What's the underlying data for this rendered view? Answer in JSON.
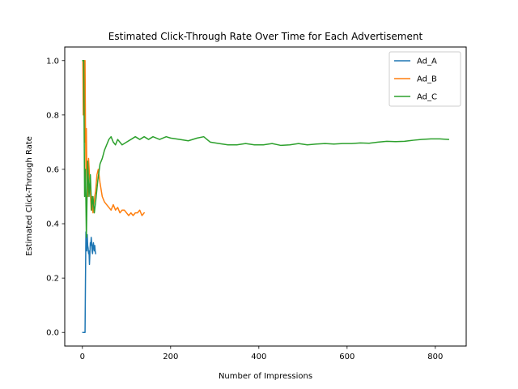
{
  "chart_data": {
    "type": "line",
    "title": "Estimated Click-Through Rate Over Time for Each Advertisement",
    "xlabel": "Number of Impressions",
    "ylabel": "Estimated Click-Through Rate",
    "xlim": [
      -40,
      870
    ],
    "ylim": [
      -0.05,
      1.05
    ],
    "xticks": [
      0,
      200,
      400,
      600,
      800
    ],
    "yticks": [
      0.0,
      0.2,
      0.4,
      0.6,
      0.8,
      1.0
    ],
    "xtick_labels": [
      "0",
      "200",
      "400",
      "600",
      "800"
    ],
    "ytick_labels": [
      "0.0",
      "0.2",
      "0.4",
      "0.6",
      "0.8",
      "1.0"
    ],
    "grid": false,
    "legend_position": "top-right",
    "series": [
      {
        "name": "Ad_A",
        "color": "#1f77b4",
        "x": [
          1,
          2,
          3,
          4,
          5,
          6,
          7,
          8,
          9,
          10,
          11,
          12,
          13,
          14,
          15,
          16,
          17,
          18,
          19,
          20,
          21,
          22,
          23,
          24,
          25,
          26,
          27,
          28,
          29,
          30
        ],
        "y": [
          0.0,
          0.0,
          0.0,
          0.0,
          0.0,
          0.0,
          0.2,
          0.37,
          0.33,
          0.3,
          0.36,
          0.32,
          0.31,
          0.29,
          0.3,
          0.25,
          0.29,
          0.33,
          0.32,
          0.35,
          0.33,
          0.3,
          0.29,
          0.32,
          0.33,
          0.31,
          0.3,
          0.32,
          0.3,
          0.29
        ]
      },
      {
        "name": "Ad_B",
        "color": "#ff7f0e",
        "x": [
          1,
          2,
          3,
          4,
          5,
          6,
          7,
          8,
          9,
          10,
          12,
          14,
          16,
          18,
          20,
          22,
          24,
          26,
          28,
          30,
          33,
          36,
          40,
          45,
          50,
          55,
          60,
          65,
          70,
          75,
          80,
          85,
          90,
          95,
          100,
          105,
          110,
          115,
          120,
          125,
          130,
          135,
          140
        ],
        "y": [
          1.0,
          0.8,
          1.0,
          1.0,
          0.7,
          1.0,
          0.75,
          0.6,
          0.75,
          0.6,
          0.5,
          0.64,
          0.58,
          0.52,
          0.45,
          0.5,
          0.44,
          0.47,
          0.5,
          0.52,
          0.58,
          0.6,
          0.55,
          0.5,
          0.48,
          0.47,
          0.46,
          0.45,
          0.47,
          0.45,
          0.46,
          0.44,
          0.45,
          0.45,
          0.44,
          0.43,
          0.44,
          0.43,
          0.44,
          0.44,
          0.45,
          0.43,
          0.44
        ]
      },
      {
        "name": "Ad_C",
        "color": "#2ca02c",
        "x": [
          1,
          3,
          5,
          7,
          9,
          12,
          15,
          18,
          21,
          24,
          27,
          30,
          35,
          40,
          45,
          50,
          55,
          60,
          65,
          70,
          75,
          80,
          90,
          100,
          110,
          120,
          130,
          140,
          150,
          160,
          175,
          190,
          200,
          220,
          240,
          260,
          275,
          290,
          310,
          330,
          350,
          370,
          390,
          410,
          430,
          450,
          470,
          490,
          510,
          530,
          550,
          570,
          590,
          610,
          630,
          650,
          670,
          690,
          710,
          730,
          750,
          770,
          790,
          810,
          830
        ],
        "y": [
          1.0,
          1.0,
          0.5,
          0.6,
          0.35,
          0.63,
          0.5,
          0.58,
          0.45,
          0.5,
          0.44,
          0.48,
          0.56,
          0.62,
          0.64,
          0.67,
          0.69,
          0.71,
          0.72,
          0.7,
          0.69,
          0.71,
          0.69,
          0.7,
          0.71,
          0.72,
          0.71,
          0.72,
          0.71,
          0.72,
          0.71,
          0.72,
          0.715,
          0.71,
          0.705,
          0.715,
          0.72,
          0.7,
          0.695,
          0.69,
          0.69,
          0.695,
          0.69,
          0.69,
          0.695,
          0.688,
          0.69,
          0.695,
          0.69,
          0.693,
          0.695,
          0.693,
          0.695,
          0.695,
          0.697,
          0.696,
          0.7,
          0.703,
          0.702,
          0.703,
          0.707,
          0.71,
          0.712,
          0.712,
          0.71
        ]
      }
    ]
  }
}
